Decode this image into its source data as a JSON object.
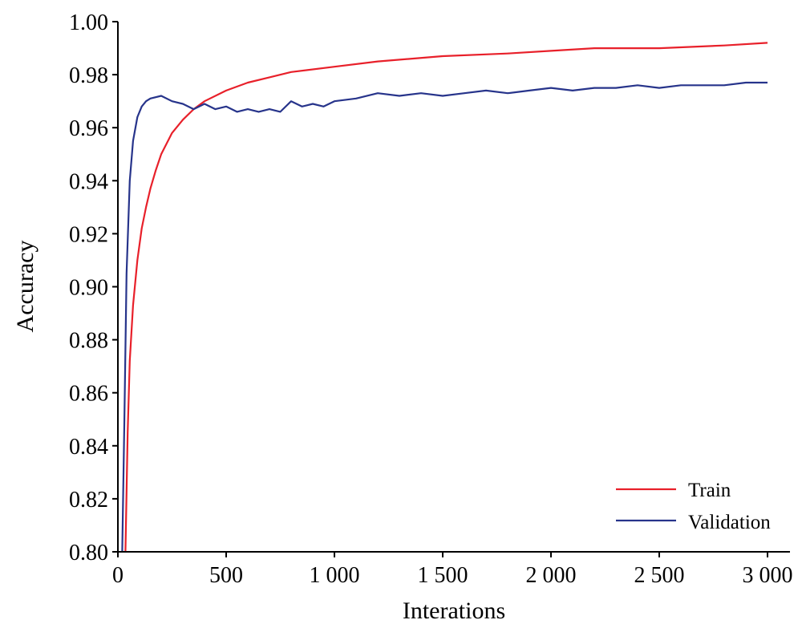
{
  "chart_data": {
    "type": "line",
    "title": "",
    "xlabel": "Interations",
    "ylabel": "Accuracy",
    "xlim": [
      0,
      3000
    ],
    "ylim": [
      0.8,
      1.0
    ],
    "x_ticks": [
      0,
      500,
      1000,
      1500,
      2000,
      2500,
      3000
    ],
    "x_tick_labels": [
      "0",
      "500",
      "1 000",
      "1 500",
      "2 000",
      "2 500",
      "3 000"
    ],
    "y_ticks": [
      0.8,
      0.82,
      0.84,
      0.86,
      0.88,
      0.9,
      0.92,
      0.94,
      0.96,
      0.98,
      1.0
    ],
    "y_tick_labels": [
      "0.80",
      "0.82",
      "0.84",
      "0.86",
      "0.88",
      "0.90",
      "0.92",
      "0.94",
      "0.96",
      "0.98",
      "1.00"
    ],
    "grid": false,
    "legend_position": "bottom-right",
    "series": [
      {
        "name": "Train",
        "color": "#e8202a",
        "x": [
          35,
          45,
          55,
          70,
          90,
          110,
          130,
          150,
          175,
          200,
          250,
          300,
          350,
          400,
          500,
          600,
          700,
          800,
          1000,
          1200,
          1500,
          1800,
          2000,
          2200,
          2500,
          2800,
          3000
        ],
        "y": [
          0.8,
          0.845,
          0.872,
          0.893,
          0.91,
          0.922,
          0.93,
          0.937,
          0.944,
          0.95,
          0.958,
          0.963,
          0.967,
          0.97,
          0.974,
          0.977,
          0.979,
          0.981,
          0.983,
          0.985,
          0.987,
          0.988,
          0.989,
          0.99,
          0.99,
          0.991,
          0.992
        ]
      },
      {
        "name": "Validation",
        "color": "#27348b",
        "x": [
          20,
          30,
          40,
          55,
          70,
          90,
          110,
          130,
          150,
          200,
          250,
          300,
          350,
          400,
          450,
          500,
          550,
          600,
          650,
          700,
          750,
          800,
          850,
          900,
          950,
          1000,
          1100,
          1200,
          1300,
          1400,
          1500,
          1600,
          1700,
          1800,
          1900,
          2000,
          2100,
          2200,
          2300,
          2400,
          2500,
          2600,
          2700,
          2800,
          2900,
          3000
        ],
        "y": [
          0.8,
          0.85,
          0.905,
          0.94,
          0.955,
          0.964,
          0.968,
          0.97,
          0.971,
          0.972,
          0.97,
          0.969,
          0.967,
          0.969,
          0.967,
          0.968,
          0.966,
          0.967,
          0.966,
          0.967,
          0.966,
          0.97,
          0.968,
          0.969,
          0.968,
          0.97,
          0.971,
          0.973,
          0.972,
          0.973,
          0.972,
          0.973,
          0.974,
          0.973,
          0.974,
          0.975,
          0.974,
          0.975,
          0.975,
          0.976,
          0.975,
          0.976,
          0.976,
          0.976,
          0.977,
          0.977
        ]
      }
    ]
  }
}
